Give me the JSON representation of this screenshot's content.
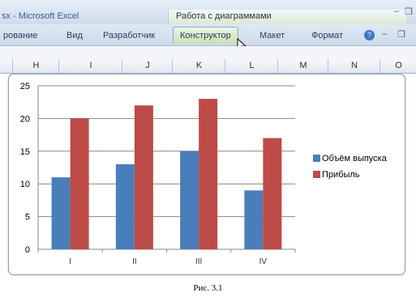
{
  "window": {
    "title_fragment": "sx - Microsoft Excel",
    "context_group": "Работа с диаграммами"
  },
  "ribbon": {
    "tabs": [
      {
        "label": "рование",
        "active": false
      },
      {
        "label": "Вид",
        "active": false
      },
      {
        "label": "Разработчик",
        "active": false
      },
      {
        "label": "Конструктор",
        "active": true
      },
      {
        "label": "Макет",
        "active": false
      },
      {
        "label": "Формат",
        "active": false
      }
    ]
  },
  "sheet": {
    "columns": [
      "H",
      "I",
      "J",
      "K",
      "L",
      "M",
      "N",
      "O"
    ]
  },
  "chart_data": {
    "type": "bar",
    "categories": [
      "I",
      "II",
      "III",
      "IV"
    ],
    "series": [
      {
        "name": "Объём выпуска",
        "values": [
          11,
          13,
          15,
          9
        ],
        "color": "#4a7ebb"
      },
      {
        "name": "Прибыль",
        "values": [
          20,
          22,
          23,
          17
        ],
        "color": "#be4b48"
      }
    ],
    "yticks": [
      0,
      5,
      10,
      15,
      20,
      25
    ],
    "ylim": [
      0,
      25
    ],
    "grid": true,
    "legend": "right"
  },
  "caption": "Рис. 3.1"
}
